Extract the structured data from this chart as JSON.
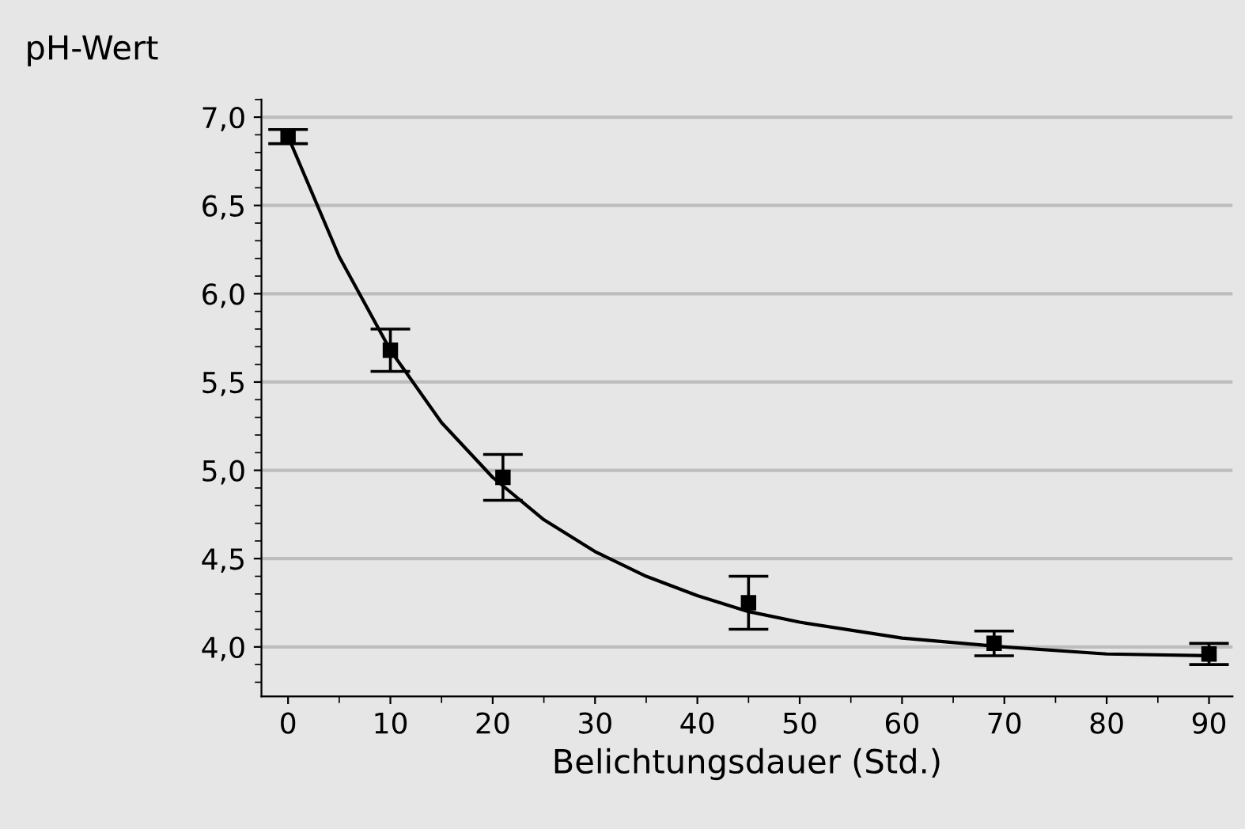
{
  "chart_data": {
    "type": "scatter",
    "xlabel": "Belichtungsdauer (Std.)",
    "ylabel": "pH-Wert",
    "xlim": [
      -2.6,
      92.3
    ],
    "ylim": [
      3.72,
      7.1
    ],
    "xticks": [
      0,
      10,
      20,
      30,
      40,
      50,
      60,
      70,
      80,
      90
    ],
    "yticks": [
      {
        "value": 4.0,
        "label": "4,0"
      },
      {
        "value": 4.5,
        "label": "4,5"
      },
      {
        "value": 5.0,
        "label": "5,0"
      },
      {
        "value": 5.5,
        "label": "5,5"
      },
      {
        "value": 6.0,
        "label": "6,0"
      },
      {
        "value": 6.5,
        "label": "6,5"
      },
      {
        "value": 7.0,
        "label": "7,0"
      }
    ],
    "grid": "y",
    "legend": false,
    "series": [
      {
        "type": "line",
        "color": "#000000",
        "marker": "none",
        "line_style": "solid",
        "x": [
          0,
          5,
          10,
          15,
          20,
          25,
          30,
          35,
          40,
          45,
          50,
          60,
          70,
          80,
          90
        ],
        "values": [
          6.89,
          6.21,
          5.68,
          5.27,
          4.96,
          4.72,
          4.54,
          4.4,
          4.29,
          4.2,
          4.14,
          4.05,
          4.0,
          3.96,
          3.95
        ]
      },
      {
        "color": "#000000",
        "marker": "square",
        "x": [
          0,
          10,
          21,
          45,
          69,
          90
        ],
        "values": [
          6.89,
          5.68,
          4.96,
          4.25,
          4.02,
          3.96
        ],
        "errors": [
          0.04,
          0.12,
          0.13,
          0.15,
          0.07,
          0.06
        ]
      }
    ]
  }
}
